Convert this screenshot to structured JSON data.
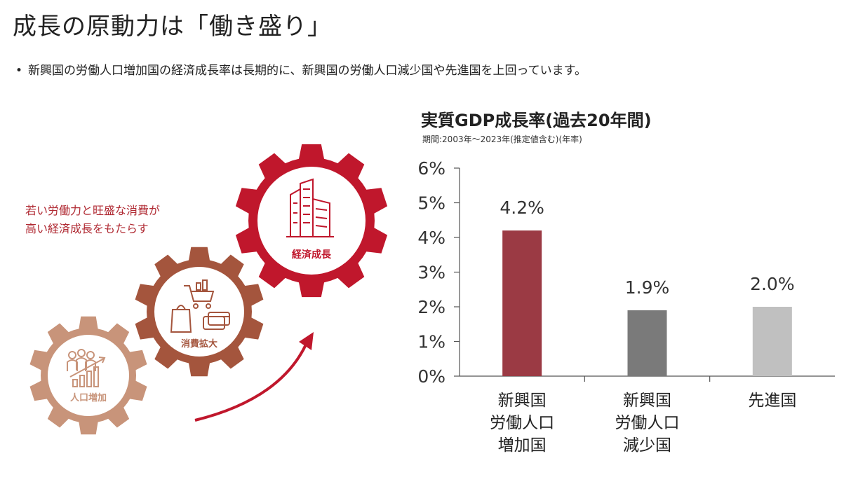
{
  "header": {
    "title": "成長の原動力は「働き盛り」",
    "bullet": "新興国の労働人口増加国の経済成長率は長期的に、新興国の労働人口減少国や先進国を上回っています。"
  },
  "diagram": {
    "caption_lines": [
      "若い労働力と旺盛な消費が",
      "高い経済成長をもたらす"
    ],
    "gears": [
      {
        "label": "人口増加",
        "icon": "population-growth-icon",
        "color": "#c8947a"
      },
      {
        "label": "消費拡大",
        "icon": "shopping-icon",
        "color": "#a4553d"
      },
      {
        "label": "経済成長",
        "icon": "buildings-icon",
        "color": "#c0172c"
      }
    ],
    "arrow_color": "#c0172c"
  },
  "chart_data": {
    "type": "bar",
    "title": "実質GDP成長率(過去20年間)",
    "subtitle": "期間:2003年～2023年(推定値含む)(年率)",
    "categories": [
      [
        "新興国",
        "労働人口",
        "増加国"
      ],
      [
        "新興国",
        "労働人口",
        "減少国"
      ],
      [
        "先進国"
      ]
    ],
    "values": [
      4.2,
      1.9,
      2.0
    ],
    "value_labels": [
      "4.2%",
      "1.9%",
      "2.0%"
    ],
    "colors": [
      "#9b3a44",
      "#7a7a7a",
      "#c0c0c0"
    ],
    "ylim": [
      0,
      6
    ],
    "yticks": [
      0,
      1,
      2,
      3,
      4,
      5,
      6
    ],
    "ytick_labels": [
      "0%",
      "1%",
      "2%",
      "3%",
      "4%",
      "5%",
      "6%"
    ],
    "grid": false,
    "legend": "none"
  }
}
